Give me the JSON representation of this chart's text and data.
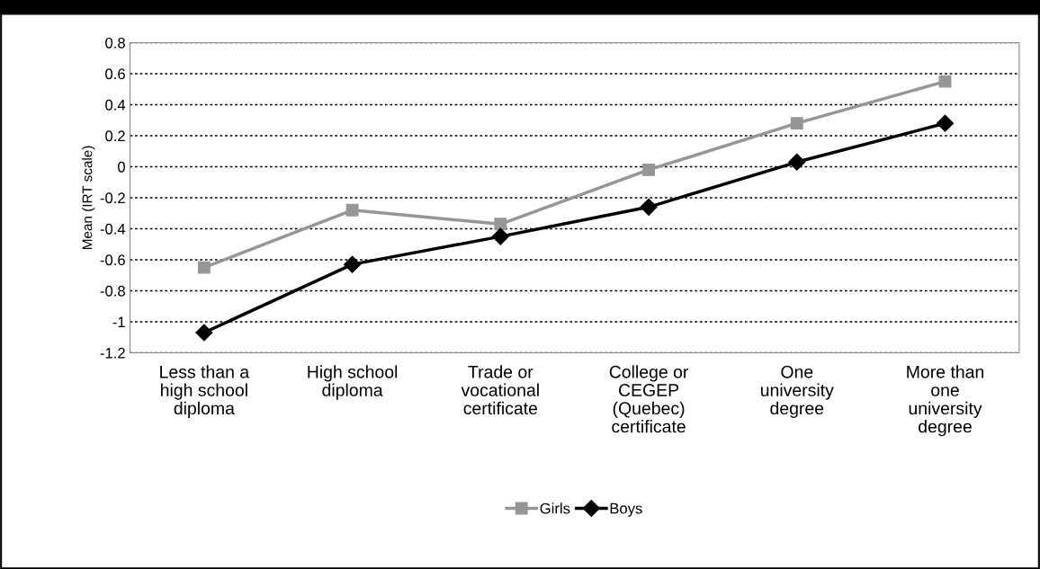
{
  "chart_data": {
    "type": "line",
    "ylabel": "Mean (IRT scale)",
    "categories": [
      "Less than a\nhigh school\ndiploma",
      "High school\ndiploma",
      "Trade or\nvocational\ncertificate",
      "College or\nCEGEP\n(Quebec)\ncertificate",
      "One\nuniversity\ndegree",
      "More than\none\nuniversity\ndegree"
    ],
    "series": [
      {
        "name": "Girls",
        "color": "#969696",
        "marker": "square",
        "values": [
          -0.65,
          -0.28,
          -0.37,
          -0.02,
          0.28,
          0.55
        ]
      },
      {
        "name": "Boys",
        "color": "#000000",
        "marker": "diamond",
        "values": [
          -1.07,
          -0.63,
          -0.45,
          -0.26,
          0.03,
          0.28
        ]
      }
    ],
    "ylim": [
      -1.2,
      0.8
    ],
    "yticks": [
      {
        "value": -1.2,
        "label": "-1.2"
      },
      {
        "value": -1,
        "label": "-1"
      },
      {
        "value": -0.8,
        "label": "-0.8"
      },
      {
        "value": -0.6,
        "label": "-0.6"
      },
      {
        "value": -0.4,
        "label": "-0.4"
      },
      {
        "value": -0.2,
        "label": "-0.2"
      },
      {
        "value": 0,
        "label": "0"
      },
      {
        "value": 0.2,
        "label": "0.2"
      },
      {
        "value": 0.4,
        "label": "0.4"
      },
      {
        "value": 0.6,
        "label": "0.6"
      },
      {
        "value": 0.8,
        "label": "0.8"
      }
    ],
    "grid": "y",
    "legend": "bottom",
    "line_style": "solid"
  }
}
